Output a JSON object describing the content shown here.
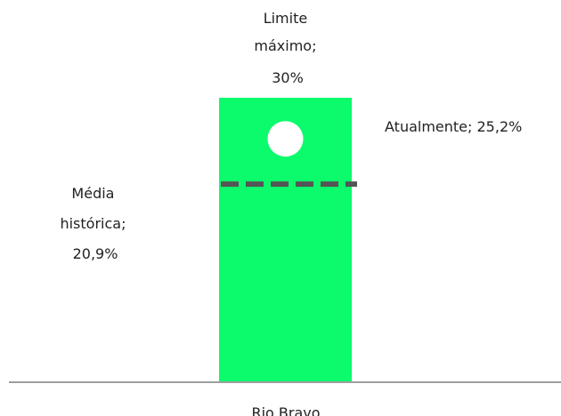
{
  "chart_data": {
    "type": "bar",
    "categories": [
      "Rio Bravo"
    ],
    "ylim": [
      0,
      30
    ],
    "grid": false,
    "legend": "none",
    "series": [
      {
        "values": [
          30
        ],
        "color": "#0bfb6c"
      }
    ],
    "markers": [
      {
        "kind": "current",
        "value": 25.2,
        "label": "Atualmente; 25,2%",
        "color": "#ffffff"
      },
      {
        "kind": "historical-average",
        "value": 20.9,
        "label_lines": [
          "Média",
          "histórica;",
          "20,9%"
        ],
        "color": "#555555"
      }
    ],
    "bar_top_label_lines": [
      "Limite",
      "máximo;",
      "30%"
    ],
    "axis_color": "#9e9e9e"
  }
}
